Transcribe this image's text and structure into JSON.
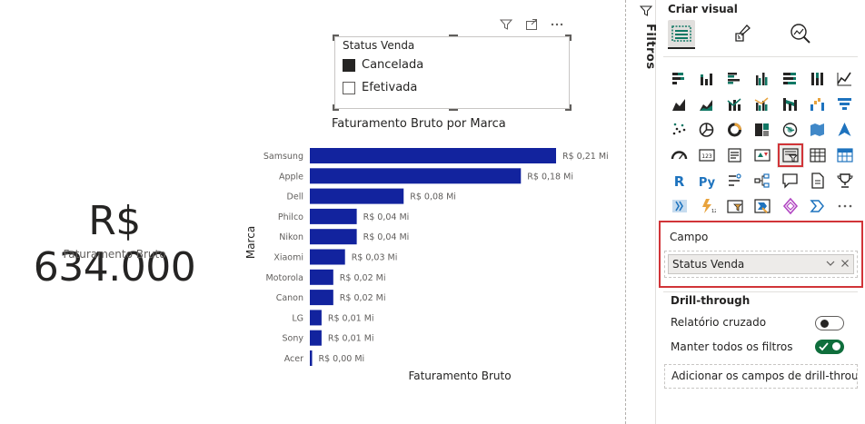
{
  "kpi": {
    "value": "R$ 634.000",
    "label": "Faturamento Bruto"
  },
  "slicer": {
    "title": "Status Venda",
    "items": [
      {
        "label": "Cancelada",
        "checked": true
      },
      {
        "label": "Efetivada",
        "checked": false
      }
    ],
    "toolbar": [
      "filter-icon",
      "focus-mode-icon",
      "more-options-icon"
    ]
  },
  "chart_data": {
    "type": "bar",
    "orientation": "horizontal",
    "title": "Faturamento Bruto por Marca",
    "xlabel": "Faturamento Bruto",
    "ylabel": "Marca",
    "bar_color": "#12239e",
    "xlim": [
      0,
      0.21
    ],
    "categories": [
      "Samsung",
      "Apple",
      "Dell",
      "Philco",
      "Nikon",
      "Xiaomi",
      "Motorola",
      "Canon",
      "LG",
      "Sony",
      "Acer"
    ],
    "values": [
      0.21,
      0.18,
      0.08,
      0.04,
      0.04,
      0.03,
      0.02,
      0.02,
      0.01,
      0.01,
      0.0
    ],
    "data_labels": [
      "R$ 0,21 Mi",
      "R$ 0,18 Mi",
      "R$ 0,08 Mi",
      "R$ 0,04 Mi",
      "R$ 0,04 Mi",
      "R$ 0,03 Mi",
      "R$ 0,02 Mi",
      "R$ 0,02 Mi",
      "R$ 0,01 Mi",
      "R$ 0,01 Mi",
      "R$ 0,00 Mi"
    ],
    "grid": false,
    "legend": "none"
  },
  "filters_pane": {
    "label": "Filtros",
    "icon": "filter-icon"
  },
  "viz_pane": {
    "title": "Criar visual",
    "tabs": [
      {
        "name": "build-visual-tab",
        "active": true
      },
      {
        "name": "format-visual-tab",
        "active": false
      },
      {
        "name": "analytics-tab",
        "active": false
      }
    ],
    "visual_icons": [
      "stacked-bar-chart-icon",
      "stacked-column-chart-icon",
      "clustered-bar-chart-icon",
      "clustered-column-chart-icon",
      "100-stacked-bar-chart-icon",
      "100-stacked-column-chart-icon",
      "line-chart-icon",
      "area-chart-icon",
      "stacked-area-chart-icon",
      "line-and-stacked-column-icon",
      "line-and-clustered-column-icon",
      "ribbon-chart-icon",
      "waterfall-chart-icon",
      "funnel-chart-icon",
      "scatter-chart-icon",
      "pie-chart-icon",
      "donut-chart-icon",
      "treemap-icon",
      "map-icon",
      "filled-map-icon",
      "azure-map-icon",
      "gauge-icon",
      "card-icon",
      "multi-row-card-icon",
      "kpi-icon",
      "slicer-icon",
      "table-icon",
      "matrix-icon",
      "r-script-visual-icon",
      "python-visual-icon",
      "key-influencers-icon",
      "decomposition-tree-icon",
      "qa-visual-icon",
      "paginated-report-icon",
      "goals-icon",
      "power-apps-icon",
      "smart-narrative-icon",
      "card-new-icon",
      "power-automate-icon",
      "diamond-visual-icon",
      "chevron-visual-icon",
      "more-visuals-icon"
    ],
    "selected_visual": "slicer-icon",
    "field_well": {
      "label": "Campo",
      "value": "Status Venda"
    },
    "drill_through": {
      "title": "Drill-through",
      "cross_report": {
        "label": "Relatório cruzado",
        "on": false
      },
      "keep_filters": {
        "label": "Manter todos os filtros",
        "on": true
      },
      "add_fields": "Adicionar os campos de drill-throu..."
    }
  }
}
